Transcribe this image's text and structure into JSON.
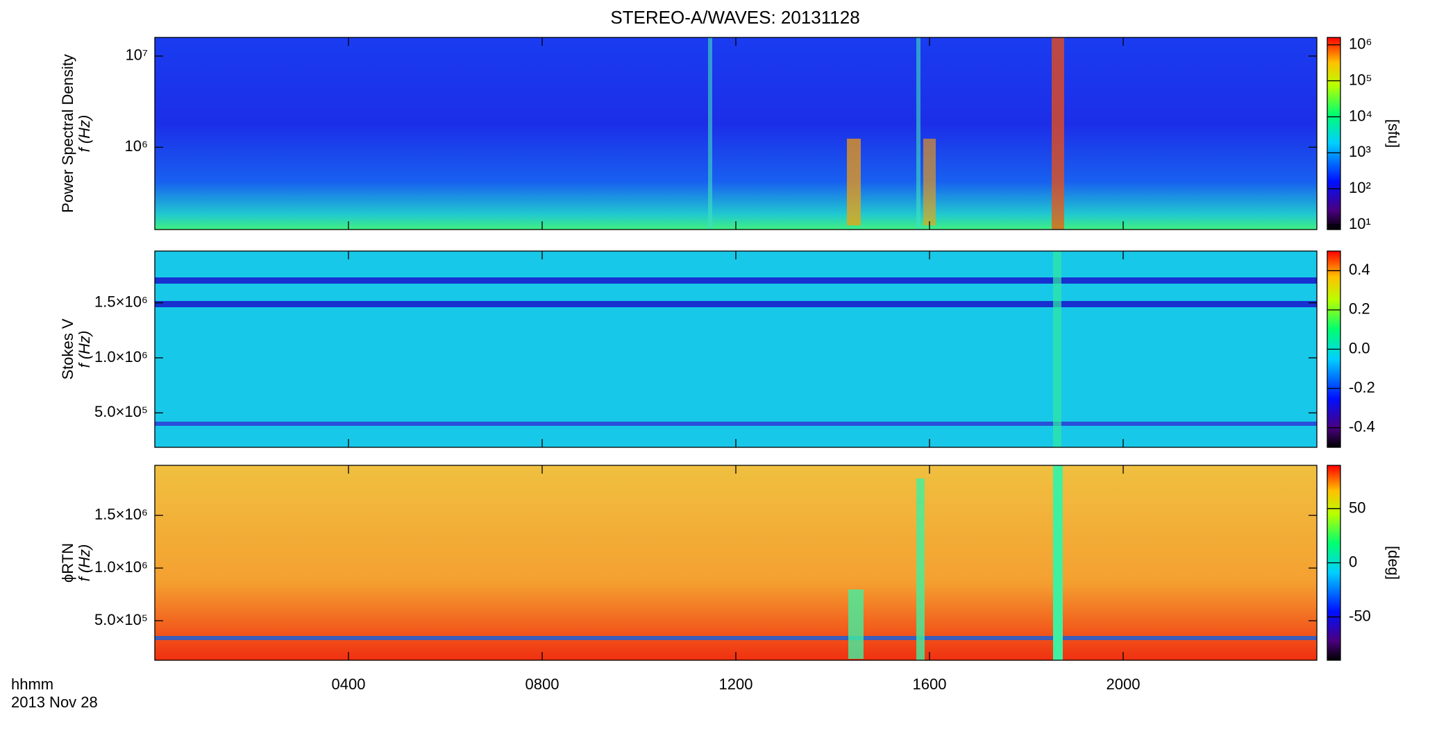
{
  "chart_data": [
    {
      "type": "heatmap",
      "title": "STEREO-A/WAVES: 20131128",
      "ylabel": [
        "Power Spectral Density",
        "f (Hz)"
      ],
      "xlim": [
        0,
        24
      ],
      "ylog": true,
      "ylim": [
        125000,
        16000000
      ],
      "yticks": [
        {
          "value": 1000000,
          "label": "10⁶"
        },
        {
          "value": 10000000,
          "label": "10⁷"
        }
      ],
      "colorbar": {
        "label": "[sfu]",
        "log": true,
        "lim": [
          7.4,
          1600000
        ],
        "ticks": [
          {
            "value": 10,
            "label": "10¹"
          },
          {
            "value": 100,
            "label": "10²"
          },
          {
            "value": 1000,
            "label": "10³"
          },
          {
            "value": 10000,
            "label": "10⁴"
          },
          {
            "value": 100000,
            "label": "10⁵"
          },
          {
            "value": 1000000,
            "label": "10⁶"
          }
        ]
      }
    },
    {
      "type": "heatmap",
      "ylabel": [
        "Stokes V",
        "f (Hz)"
      ],
      "xlim": [
        0,
        24
      ],
      "ylog": false,
      "ylim": [
        187000,
        1970000
      ],
      "yticks": [
        {
          "value": 500000,
          "label": "5.0×10⁵"
        },
        {
          "value": 1000000,
          "label": "1.0×10⁶"
        },
        {
          "value": 1500000,
          "label": "1.5×10⁶"
        }
      ],
      "colorbar": {
        "label": null,
        "log": false,
        "lim": [
          -0.5,
          0.5
        ],
        "ticks": [
          {
            "value": -0.4,
            "label": "-0.4"
          },
          {
            "value": -0.2,
            "label": "-0.2"
          },
          {
            "value": 0,
            "label": "0.0"
          },
          {
            "value": 0.2,
            "label": "0.2"
          },
          {
            "value": 0.4,
            "label": "0.4"
          }
        ]
      }
    },
    {
      "type": "heatmap",
      "ylabel": [
        "ϕRTN",
        "f (Hz)"
      ],
      "xlim": [
        0,
        24
      ],
      "ylog": false,
      "ylim": [
        125000,
        1975000
      ],
      "yticks": [
        {
          "value": 500000,
          "label": "5.0×10⁵"
        },
        {
          "value": 1000000,
          "label": "1.0×10⁶"
        },
        {
          "value": 1500000,
          "label": "1.5×10⁶"
        }
      ],
      "xticks": [
        {
          "value": 4,
          "label": "0400"
        },
        {
          "value": 8,
          "label": "0800"
        },
        {
          "value": 12,
          "label": "1200"
        },
        {
          "value": 16,
          "label": "1600"
        },
        {
          "value": 20,
          "label": "2000"
        }
      ],
      "xlabel": [
        "hhmm",
        "2013 Nov 28"
      ],
      "colorbar": {
        "label": "[deg]",
        "log": false,
        "lim": [
          -90,
          90
        ],
        "ticks": [
          -50,
          0,
          50
        ]
      }
    }
  ]
}
